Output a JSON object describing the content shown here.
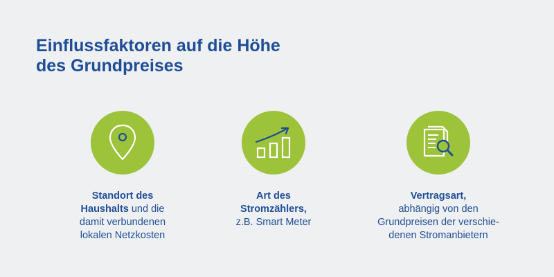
{
  "title": {
    "line1": "Einflussfaktoren auf die Höhe",
    "line2": "des Grundpreises"
  },
  "colors": {
    "background": "#eef0f2",
    "accent_green": "#9dc33b",
    "text_blue": "#1f4e96",
    "icon_white": "#ffffff"
  },
  "factors": [
    {
      "icon": "location-pin-icon",
      "bold1": "Standort des",
      "bold2": "Haushalts",
      "rest2": " und die",
      "line3": "damit verbundenen",
      "line4": "lokalen Netzkosten"
    },
    {
      "icon": "bar-chart-trend-icon",
      "bold1": "Art des",
      "bold2": "Stromzählers,",
      "line3": "z.B. Smart Meter"
    },
    {
      "icon": "document-search-icon",
      "bold1": "Vertragsart,",
      "line2": "abhängig von den",
      "line3": "Grundpreisen der verschie-",
      "line4": "denen Stromanbietern"
    }
  ]
}
